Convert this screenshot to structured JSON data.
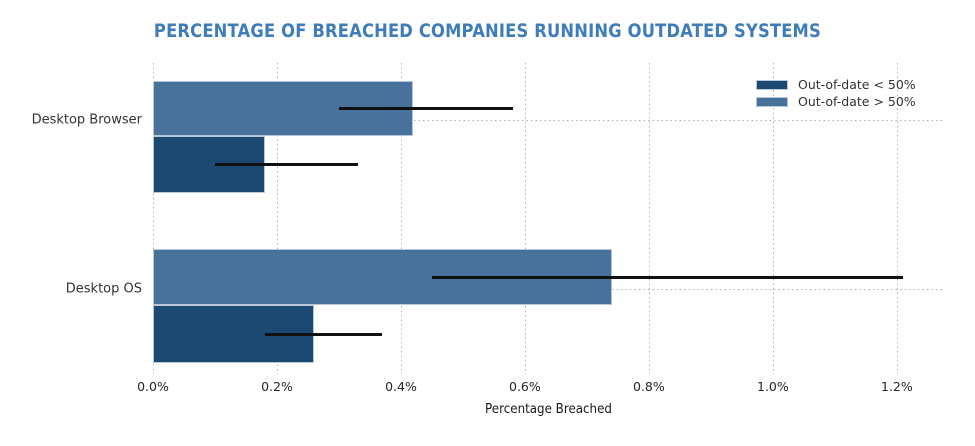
{
  "title": "PERCENTAGE OF BREACHED COMPANIES RUNNING OUTDATED SYSTEMS",
  "title_color": "#3f7cba",
  "chart_data": {
    "type": "bar",
    "orientation": "horizontal",
    "title": "PERCENTAGE OF BREACHED COMPANIES RUNNING OUTDATED SYSTEMS",
    "xlabel": "Percentage Breached",
    "categories": [
      "Desktop Browser",
      "Desktop OS"
    ],
    "series": [
      {
        "name": "Out-of-date < 50%",
        "color": "#1b4971",
        "values": [
          0.18,
          0.26
        ],
        "error_ranges": [
          [
            0.1,
            0.33
          ],
          [
            0.18,
            0.37
          ]
        ]
      },
      {
        "name": "Out-of-date > 50%",
        "color": "#48719c",
        "values": [
          0.42,
          0.74
        ],
        "error_ranges": [
          [
            0.3,
            0.58
          ],
          [
            0.45,
            1.21
          ]
        ]
      }
    ],
    "x_tick_labels": [
      "0.0%",
      "0.2%",
      "0.4%",
      "0.6%",
      "0.8%",
      "1.0%",
      "1.2%"
    ],
    "x_tick_values": [
      0,
      0.2,
      0.4,
      0.6,
      0.8,
      1.0,
      1.2
    ],
    "xlim": [
      0,
      1.276
    ],
    "grid": "dotted, both axes",
    "grid_color": "#b0b0b0",
    "legend_position": "upper right",
    "legend_frame": false,
    "error_bar_color": "#111111",
    "bar_edge_color": "#b9c7d9",
    "units": "percent"
  }
}
